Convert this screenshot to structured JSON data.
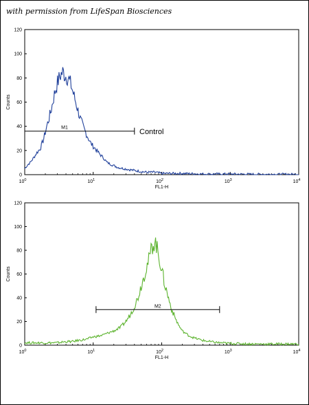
{
  "watermark": "with permission from LifeSpan Biosciences",
  "chart_data": [
    {
      "type": "histogram",
      "color": "#1f3f9a",
      "xlabel": "FL1-H",
      "ylabel": "Counts",
      "xscale": "log",
      "xlim": [
        1,
        10000
      ],
      "ylim": [
        0,
        120
      ],
      "yticks": [
        "0",
        "20",
        "40",
        "60",
        "80",
        "100",
        "120"
      ],
      "xticks": [
        {
          "base": "10",
          "exp": "0"
        },
        {
          "base": "10",
          "exp": "1"
        },
        {
          "base": "10",
          "exp": "2"
        },
        {
          "base": "10",
          "exp": "3"
        },
        {
          "base": "10",
          "exp": "4"
        }
      ],
      "gate": {
        "label": "M1",
        "x_start": 1,
        "x_end": 40,
        "y": 36
      },
      "annotation": "Control",
      "series": [
        {
          "values": [
            [
              1.0,
              5
            ],
            [
              1.1,
              8
            ],
            [
              1.2,
              10
            ],
            [
              1.35,
              14
            ],
            [
              1.5,
              18
            ],
            [
              1.7,
              22
            ],
            [
              1.9,
              30
            ],
            [
              2.1,
              40
            ],
            [
              2.4,
              52
            ],
            [
              2.7,
              66
            ],
            [
              3.0,
              76
            ],
            [
              3.3,
              82
            ],
            [
              3.6,
              85
            ],
            [
              3.9,
              82
            ],
            [
              4.3,
              80
            ],
            [
              4.7,
              75
            ],
            [
              5.2,
              66
            ],
            [
              5.8,
              56
            ],
            [
              6.5,
              46
            ],
            [
              7.3,
              38
            ],
            [
              8.2,
              32
            ],
            [
              9.2,
              26
            ],
            [
              10.5,
              22
            ],
            [
              12,
              18
            ],
            [
              14,
              14
            ],
            [
              16,
              10
            ],
            [
              19,
              8
            ],
            [
              23,
              6
            ],
            [
              28,
              5
            ],
            [
              35,
              4
            ],
            [
              45,
              3
            ],
            [
              60,
              2
            ],
            [
              80,
              2
            ],
            [
              100,
              1
            ],
            [
              150,
              1
            ],
            [
              200,
              1
            ],
            [
              400,
              0.5
            ],
            [
              1000,
              0.5
            ],
            [
              2000,
              0.3
            ],
            [
              10000,
              0.2
            ]
          ]
        }
      ]
    },
    {
      "type": "histogram",
      "color": "#5cb32e",
      "xlabel": "FL1-H",
      "ylabel": "Counts",
      "xscale": "log",
      "xlim": [
        1,
        10000
      ],
      "ylim": [
        0,
        120
      ],
      "yticks": [
        "0",
        "20",
        "40",
        "60",
        "80",
        "100",
        "120"
      ],
      "xticks": [
        {
          "base": "10",
          "exp": "0"
        },
        {
          "base": "10",
          "exp": "1"
        },
        {
          "base": "10",
          "exp": "2"
        },
        {
          "base": "10",
          "exp": "3"
        },
        {
          "base": "10",
          "exp": "4"
        }
      ],
      "gate": {
        "label": "M2",
        "x_start": 11,
        "x_end": 700,
        "y": 30
      },
      "series": [
        {
          "values": [
            [
              1.0,
              2
            ],
            [
              1.5,
              2
            ],
            [
              2,
              2
            ],
            [
              3,
              2
            ],
            [
              4,
              3
            ],
            [
              5,
              3
            ],
            [
              6,
              4
            ],
            [
              8,
              5
            ],
            [
              10,
              7
            ],
            [
              13,
              8
            ],
            [
              16,
              10
            ],
            [
              20,
              12
            ],
            [
              25,
              15
            ],
            [
              30,
              20
            ],
            [
              35,
              26
            ],
            [
              40,
              33
            ],
            [
              45,
              40
            ],
            [
              50,
              50
            ],
            [
              55,
              58
            ],
            [
              60,
              66
            ],
            [
              65,
              72
            ],
            [
              70,
              80
            ],
            [
              75,
              85
            ],
            [
              80,
              88
            ],
            [
              85,
              82
            ],
            [
              90,
              76
            ],
            [
              100,
              64
            ],
            [
              110,
              52
            ],
            [
              125,
              40
            ],
            [
              140,
              30
            ],
            [
              160,
              22
            ],
            [
              180,
              16
            ],
            [
              200,
              12
            ],
            [
              250,
              8
            ],
            [
              300,
              6
            ],
            [
              400,
              4
            ],
            [
              500,
              3
            ],
            [
              700,
              2
            ],
            [
              1000,
              1.5
            ],
            [
              2000,
              1
            ],
            [
              5000,
              1
            ],
            [
              10000,
              1
            ]
          ]
        }
      ]
    }
  ]
}
